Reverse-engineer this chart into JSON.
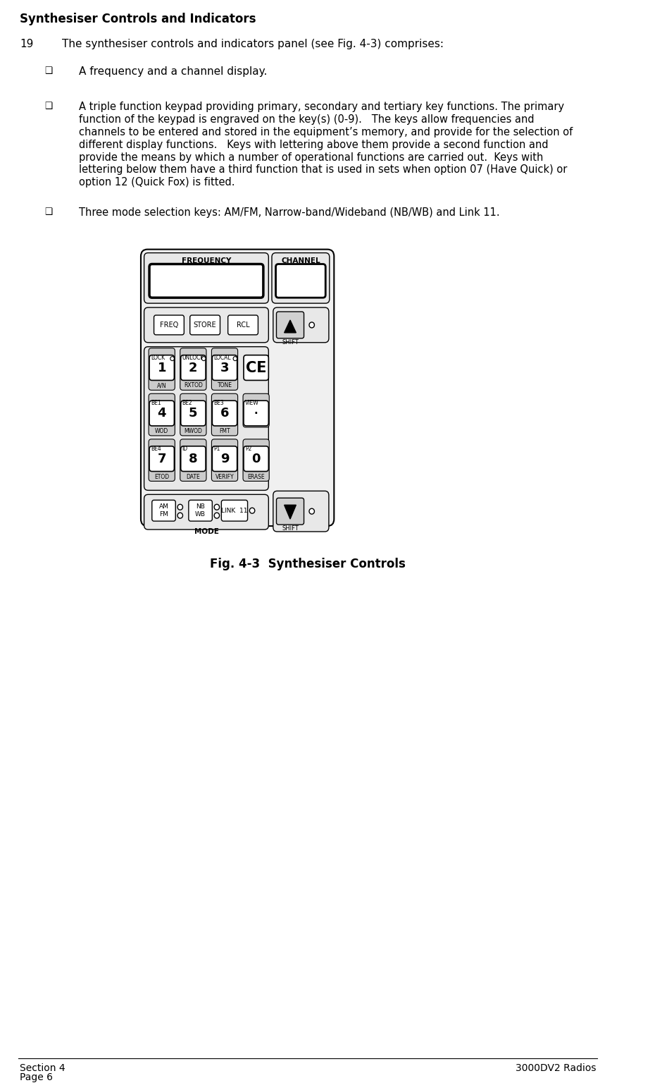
{
  "title": "Synthesiser Controls and Indicators",
  "paragraph_number": "19",
  "paragraph_text": "The synthesiser controls and indicators panel (see Fig. 4-3) comprises:",
  "bullet1": "A frequency and a channel display.",
  "bullet2_lines": [
    "A triple function keypad providing primary, secondary and tertiary key functions. The primary",
    "function of the keypad is engraved on the key(s) (0-9).   The keys allow frequencies and",
    "channels to be entered and stored in the equipment’s memory, and provide for the selection of",
    "different display functions.   Keys with lettering above them provide a second function and",
    "provide the means by which a number of operational functions are carried out.  Keys with",
    "lettering below them have a third function that is used in sets when option 07 (Have Quick) or",
    "option 12 (Quick Fox) is fitted."
  ],
  "bullet3": "Three mode selection keys: AM/FM, Narrow-band/Wideband (NB/WB) and Link 11.",
  "fig_caption": "Fig. 4-3  Synthesiser Controls",
  "footer_left": "Section 4",
  "footer_right": "3000DV2 Radios",
  "footer_page": "Page 6",
  "bg_color": "#ffffff",
  "text_color": "#000000"
}
